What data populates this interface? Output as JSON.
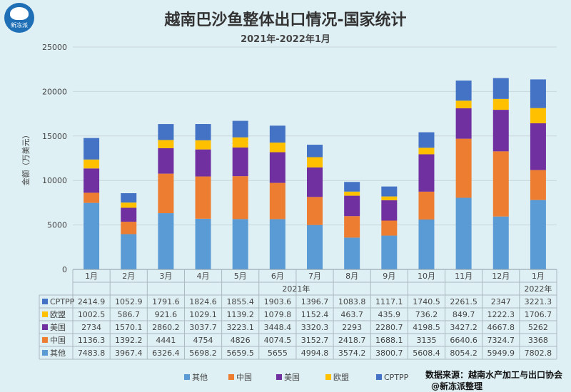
{
  "logo": {
    "text": "新冻派"
  },
  "source": "数据来源：越南水产加工与出口协会",
  "credit": "@新冻派整理",
  "colors": {
    "其他": "#5b9bd5",
    "中国": "#ed7d31",
    "美国": "#7030a0",
    "欧盟": "#ffc000",
    "CPTPP": "#4472c4"
  },
  "chart_data": {
    "type": "bar",
    "stacked": true,
    "title": "越南巴沙鱼整体出口情况-国家统计",
    "subtitle": "2021年-2022年1月",
    "ylabel": "金额（万美元）",
    "ylim": [
      0,
      25000
    ],
    "yticks": [
      0,
      5000,
      10000,
      15000,
      20000,
      25000
    ],
    "categories": [
      "1月",
      "2月",
      "3月",
      "4月",
      "5月",
      "6月",
      "7月",
      "8月",
      "9月",
      "10月",
      "11月",
      "12月",
      "1月"
    ],
    "year_groups": [
      {
        "label": "2021年",
        "start": 0,
        "end": 11
      },
      {
        "label": "2022年",
        "start": 12,
        "end": 12
      }
    ],
    "series": [
      {
        "name": "其他",
        "values": [
          7483.8,
          3967.4,
          6326.4,
          5698.2,
          5659.5,
          5655,
          4994.8,
          3574.2,
          3800.7,
          5608.4,
          8054.2,
          5949.9,
          7802.8
        ]
      },
      {
        "name": "中国",
        "values": [
          1136.3,
          1392.2,
          4441,
          4754,
          4826,
          4074.5,
          3152.7,
          2418.7,
          1688.1,
          3135,
          6640.6,
          7324.7,
          3368
        ]
      },
      {
        "name": "美国",
        "values": [
          2734,
          1570.1,
          2860.2,
          3037.7,
          3223.1,
          3448.4,
          3320.3,
          2293,
          2280.7,
          4198.5,
          3427.2,
          4667.8,
          5262
        ]
      },
      {
        "name": "欧盟",
        "values": [
          1002.5,
          586.7,
          921.6,
          1029.1,
          1139.2,
          1079.8,
          1152.4,
          463.7,
          435.9,
          736.2,
          849.7,
          1222.3,
          1706.7
        ]
      },
      {
        "name": "CPTPP",
        "values": [
          2414.9,
          1052.9,
          1791.6,
          1824.6,
          1855.4,
          1903.6,
          1396.7,
          1083.8,
          1117.1,
          1740.5,
          2261.5,
          2347,
          3221.3
        ]
      }
    ],
    "table_rows": [
      {
        "name": "CPTPP",
        "values": [
          "2414.9",
          "1052.9",
          "1791.6",
          "1824.6",
          "1855.4",
          "1903.6",
          "1396.7",
          "1083.8",
          "1117.1",
          "1740.5",
          "2261.5",
          "2347",
          "3221.3"
        ]
      },
      {
        "name": "欧盟",
        "values": [
          "1002.5",
          "586.7",
          "921.6",
          "1029.1",
          "1139.2",
          "1079.8",
          "1152.4",
          "463.7",
          "435.9",
          "736.2",
          "849.7",
          "1222.3",
          "1706.7"
        ]
      },
      {
        "name": "美国",
        "values": [
          "2734",
          "1570.1",
          "2860.2",
          "3037.7",
          "3223.1",
          "3448.4",
          "3320.3",
          "2293",
          "2280.7",
          "4198.5",
          "3427.2",
          "4667.8",
          "5262"
        ]
      },
      {
        "name": "中国",
        "values": [
          "1136.3",
          "1392.2",
          "4441",
          "4754",
          "4826",
          "4074.5",
          "3152.7",
          "2418.7",
          "1688.1",
          "3135",
          "6640.6",
          "7324.7",
          "3368"
        ]
      },
      {
        "name": "其他",
        "values": [
          "7483.8",
          "3967.4",
          "6326.4",
          "5698.2",
          "5659.5",
          "5655",
          "4994.8",
          "3574.2",
          "3800.7",
          "5608.4",
          "8054.2",
          "5949.9",
          "7802.8"
        ]
      }
    ],
    "legend": [
      "其他",
      "中国",
      "美国",
      "欧盟",
      "CPTPP"
    ],
    "legend_position": "bottom"
  }
}
